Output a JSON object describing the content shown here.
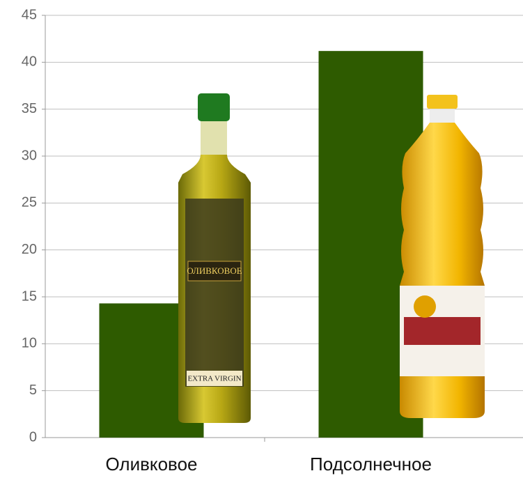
{
  "chart_data": {
    "type": "bar",
    "categories": [
      "Оливковое",
      "Подсолнечное"
    ],
    "values": [
      14.3,
      41.2
    ],
    "color": "#2e5b00",
    "ylim": [
      0,
      45
    ],
    "yticks": [
      0,
      5,
      10,
      15,
      20,
      25,
      30,
      35,
      40,
      45
    ],
    "grid": true,
    "annotations": [
      "ОЛИВКОВОЕ",
      "EXTRA VIRGIN"
    ]
  }
}
